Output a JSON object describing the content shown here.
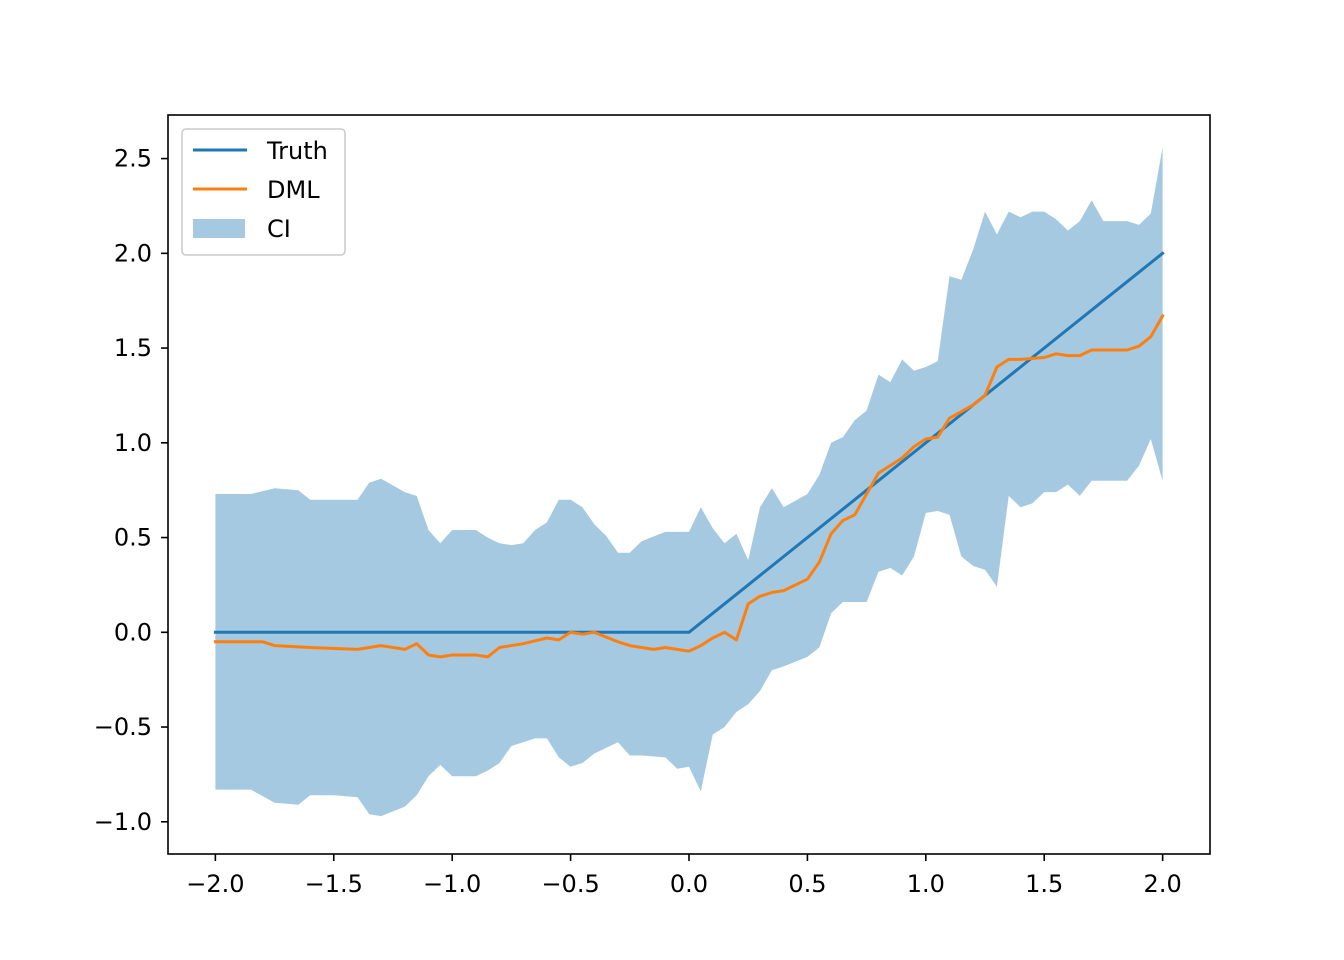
{
  "colors": {
    "truth": "#1f77b4",
    "dml": "#ff7f0e",
    "ci_fill": "#1f77b4",
    "ci_alpha": 0.4
  },
  "chart_data": {
    "type": "line",
    "title": "",
    "xlabel": "",
    "ylabel": "",
    "xlim": [
      -2.2,
      2.2
    ],
    "ylim": [
      -1.17,
      2.73
    ],
    "grid": false,
    "legend_position": "top-left",
    "xticks": [
      -2.0,
      -1.5,
      -1.0,
      -0.5,
      0.0,
      0.5,
      1.0,
      1.5,
      2.0
    ],
    "xtick_labels": [
      "−2.0",
      "−1.5",
      "−1.0",
      "−0.5",
      "0.0",
      "0.5",
      "1.0",
      "1.5",
      "2.0"
    ],
    "yticks": [
      -1.0,
      -0.5,
      0.0,
      0.5,
      1.0,
      1.5,
      2.0,
      2.5
    ],
    "ytick_labels": [
      "−1.0",
      "−0.5",
      "0.0",
      "0.5",
      "1.0",
      "1.5",
      "2.0",
      "2.5"
    ],
    "series": [
      {
        "name": "Truth",
        "kind": "line",
        "x": [
          -2.0,
          0.0,
          2.0
        ],
        "y": [
          0.0,
          0.0,
          2.0
        ]
      },
      {
        "name": "DML",
        "kind": "line",
        "x": [
          -2.0,
          -1.8,
          -1.75,
          -1.6,
          -1.4,
          -1.3,
          -1.2,
          -1.15,
          -1.1,
          -1.05,
          -1.0,
          -0.9,
          -0.85,
          -0.8,
          -0.7,
          -0.6,
          -0.55,
          -0.5,
          -0.45,
          -0.4,
          -0.3,
          -0.25,
          -0.15,
          -0.1,
          -0.05,
          0.0,
          0.05,
          0.1,
          0.15,
          0.2,
          0.25,
          0.3,
          0.35,
          0.4,
          0.5,
          0.55,
          0.6,
          0.65,
          0.7,
          0.75,
          0.8,
          0.9,
          0.95,
          1.0,
          1.05,
          1.1,
          1.2,
          1.25,
          1.3,
          1.35,
          1.4,
          1.5,
          1.55,
          1.6,
          1.65,
          1.7,
          1.75,
          1.85,
          1.9,
          1.95,
          2.0
        ],
        "y": [
          -0.05,
          -0.05,
          -0.07,
          -0.08,
          -0.09,
          -0.07,
          -0.09,
          -0.06,
          -0.12,
          -0.13,
          -0.12,
          -0.12,
          -0.13,
          -0.08,
          -0.06,
          -0.03,
          -0.04,
          0.0,
          -0.01,
          0.0,
          -0.05,
          -0.07,
          -0.09,
          -0.08,
          -0.09,
          -0.1,
          -0.07,
          -0.03,
          0.0,
          -0.04,
          0.15,
          0.19,
          0.21,
          0.22,
          0.28,
          0.37,
          0.52,
          0.59,
          0.62,
          0.73,
          0.84,
          0.92,
          0.98,
          1.02,
          1.03,
          1.13,
          1.2,
          1.25,
          1.4,
          1.44,
          1.44,
          1.45,
          1.47,
          1.46,
          1.46,
          1.49,
          1.49,
          1.49,
          1.51,
          1.56,
          1.67
        ]
      },
      {
        "name": "CI",
        "kind": "band",
        "x": [
          -2.0,
          -1.85,
          -1.75,
          -1.65,
          -1.6,
          -1.5,
          -1.4,
          -1.35,
          -1.3,
          -1.2,
          -1.15,
          -1.1,
          -1.05,
          -1.0,
          -0.9,
          -0.85,
          -0.8,
          -0.75,
          -0.7,
          -0.65,
          -0.6,
          -0.55,
          -0.5,
          -0.45,
          -0.4,
          -0.35,
          -0.3,
          -0.25,
          -0.2,
          -0.1,
          -0.05,
          0.0,
          0.05,
          0.1,
          0.15,
          0.2,
          0.25,
          0.3,
          0.35,
          0.4,
          0.5,
          0.55,
          0.6,
          0.65,
          0.7,
          0.75,
          0.8,
          0.85,
          0.9,
          0.95,
          1.0,
          1.05,
          1.1,
          1.15,
          1.2,
          1.25,
          1.3,
          1.35,
          1.4,
          1.45,
          1.5,
          1.55,
          1.6,
          1.65,
          1.7,
          1.75,
          1.8,
          1.85,
          1.9,
          1.95,
          2.0
        ],
        "lower": [
          -0.83,
          -0.83,
          -0.9,
          -0.91,
          -0.86,
          -0.86,
          -0.87,
          -0.96,
          -0.97,
          -0.92,
          -0.86,
          -0.76,
          -0.7,
          -0.76,
          -0.76,
          -0.73,
          -0.69,
          -0.6,
          -0.58,
          -0.56,
          -0.56,
          -0.66,
          -0.71,
          -0.69,
          -0.64,
          -0.61,
          -0.58,
          -0.65,
          -0.65,
          -0.66,
          -0.72,
          -0.71,
          -0.84,
          -0.54,
          -0.5,
          -0.42,
          -0.38,
          -0.31,
          -0.2,
          -0.18,
          -0.13,
          -0.08,
          0.1,
          0.16,
          0.16,
          0.16,
          0.32,
          0.34,
          0.3,
          0.4,
          0.63,
          0.64,
          0.62,
          0.4,
          0.35,
          0.33,
          0.24,
          0.72,
          0.66,
          0.68,
          0.74,
          0.74,
          0.78,
          0.72,
          0.8,
          0.8,
          0.8,
          0.8,
          0.88,
          1.02,
          0.8
        ],
        "upper": [
          0.73,
          0.73,
          0.76,
          0.75,
          0.7,
          0.7,
          0.7,
          0.79,
          0.81,
          0.74,
          0.72,
          0.54,
          0.47,
          0.54,
          0.54,
          0.5,
          0.47,
          0.46,
          0.47,
          0.54,
          0.58,
          0.7,
          0.7,
          0.66,
          0.57,
          0.51,
          0.42,
          0.42,
          0.48,
          0.53,
          0.53,
          0.53,
          0.66,
          0.55,
          0.47,
          0.52,
          0.38,
          0.66,
          0.76,
          0.66,
          0.73,
          0.83,
          1.0,
          1.03,
          1.12,
          1.17,
          1.36,
          1.32,
          1.44,
          1.38,
          1.4,
          1.43,
          1.88,
          1.86,
          2.02,
          2.22,
          2.1,
          2.22,
          2.19,
          2.22,
          2.22,
          2.18,
          2.12,
          2.17,
          2.28,
          2.17,
          2.17,
          2.17,
          2.15,
          2.21,
          2.56
        ]
      }
    ]
  }
}
